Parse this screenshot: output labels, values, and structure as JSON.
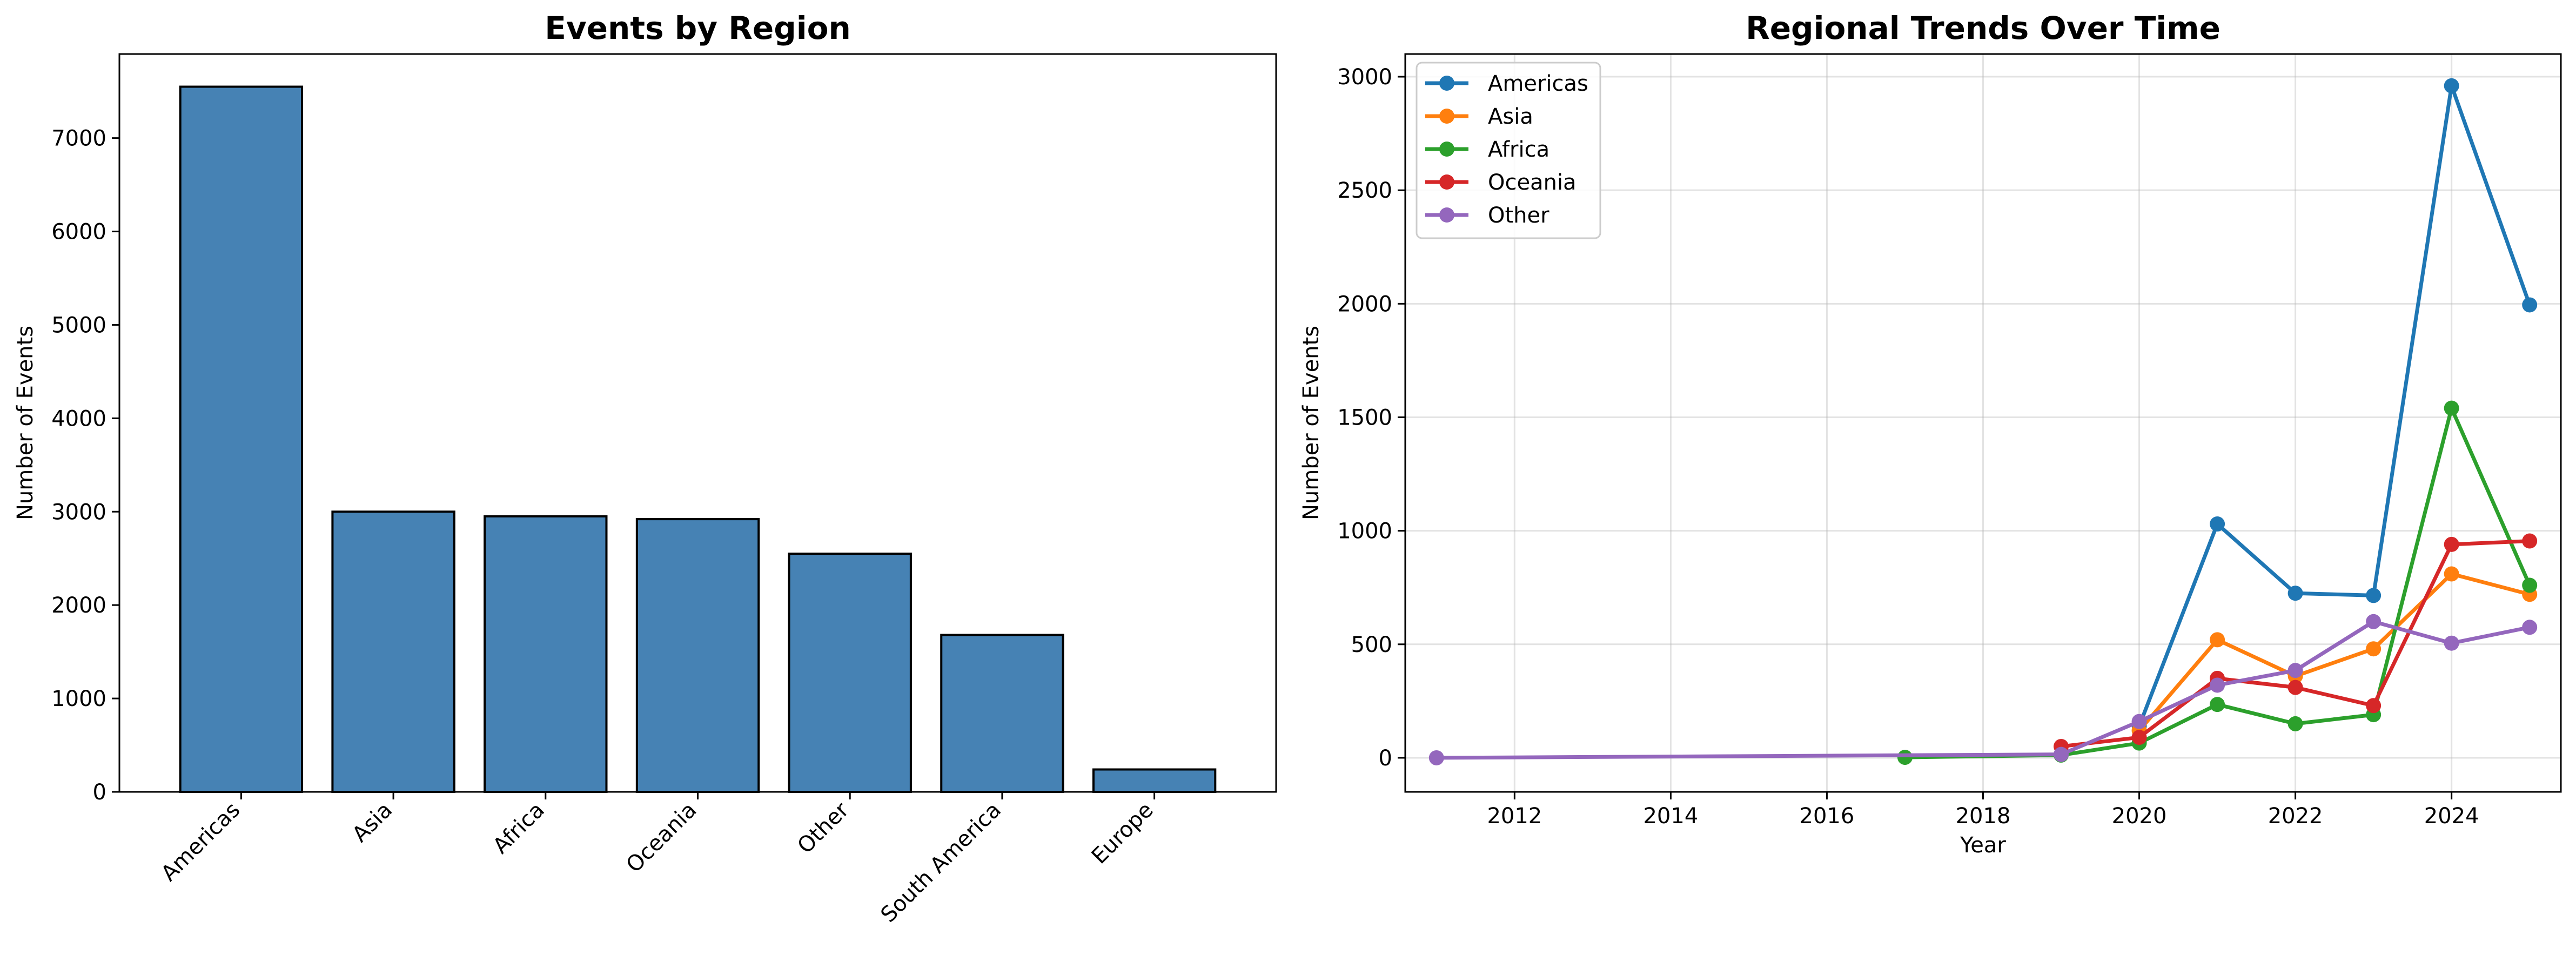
{
  "chart_data": [
    {
      "type": "bar",
      "title": "Events by Region",
      "xlabel": "",
      "ylabel": "Number of Events",
      "categories": [
        "Americas",
        "Asia",
        "Africa",
        "Oceania",
        "Other",
        "South America",
        "Europe"
      ],
      "values": [
        7550,
        3000,
        2950,
        2920,
        2550,
        1680,
        240
      ],
      "ylim": [
        0,
        7900
      ],
      "yticks": [
        0,
        1000,
        2000,
        3000,
        4000,
        5000,
        6000,
        7000
      ],
      "bar_color": "#4682b4",
      "grid": false
    },
    {
      "type": "line",
      "title": "Regional Trends Over Time",
      "xlabel": "Year",
      "ylabel": "Number of Events",
      "xlim": [
        2010.6,
        2025.4
      ],
      "ylim": [
        -150,
        3100
      ],
      "xticks": [
        2012,
        2014,
        2016,
        2018,
        2020,
        2022,
        2024
      ],
      "yticks": [
        0,
        500,
        1000,
        1500,
        2000,
        2500,
        3000
      ],
      "grid": true,
      "legend": "top-left",
      "series": [
        {
          "name": "Americas",
          "color": "#1f77b4",
          "x": [
            2020,
            2021,
            2022,
            2023,
            2024,
            2025
          ],
          "values": [
            140,
            1030,
            725,
            715,
            2960,
            1995
          ]
        },
        {
          "name": "Asia",
          "color": "#ff7f0e",
          "x": [
            2020,
            2021,
            2022,
            2023,
            2024,
            2025
          ],
          "values": [
            120,
            520,
            360,
            480,
            810,
            720
          ]
        },
        {
          "name": "Africa",
          "color": "#2ca02c",
          "x": [
            2017,
            2019,
            2020,
            2021,
            2022,
            2023,
            2024,
            2025
          ],
          "values": [
            2,
            12,
            65,
            235,
            150,
            190,
            1540,
            760
          ]
        },
        {
          "name": "Oceania",
          "color": "#d62728",
          "x": [
            2019,
            2020,
            2021,
            2022,
            2023,
            2024,
            2025
          ],
          "values": [
            50,
            90,
            350,
            310,
            230,
            940,
            955
          ]
        },
        {
          "name": "Other",
          "color": "#9467bd",
          "x": [
            2011,
            2019,
            2020,
            2021,
            2022,
            2023,
            2024,
            2025
          ],
          "values": [
            0,
            15,
            160,
            320,
            385,
            600,
            505,
            575
          ]
        }
      ]
    }
  ]
}
